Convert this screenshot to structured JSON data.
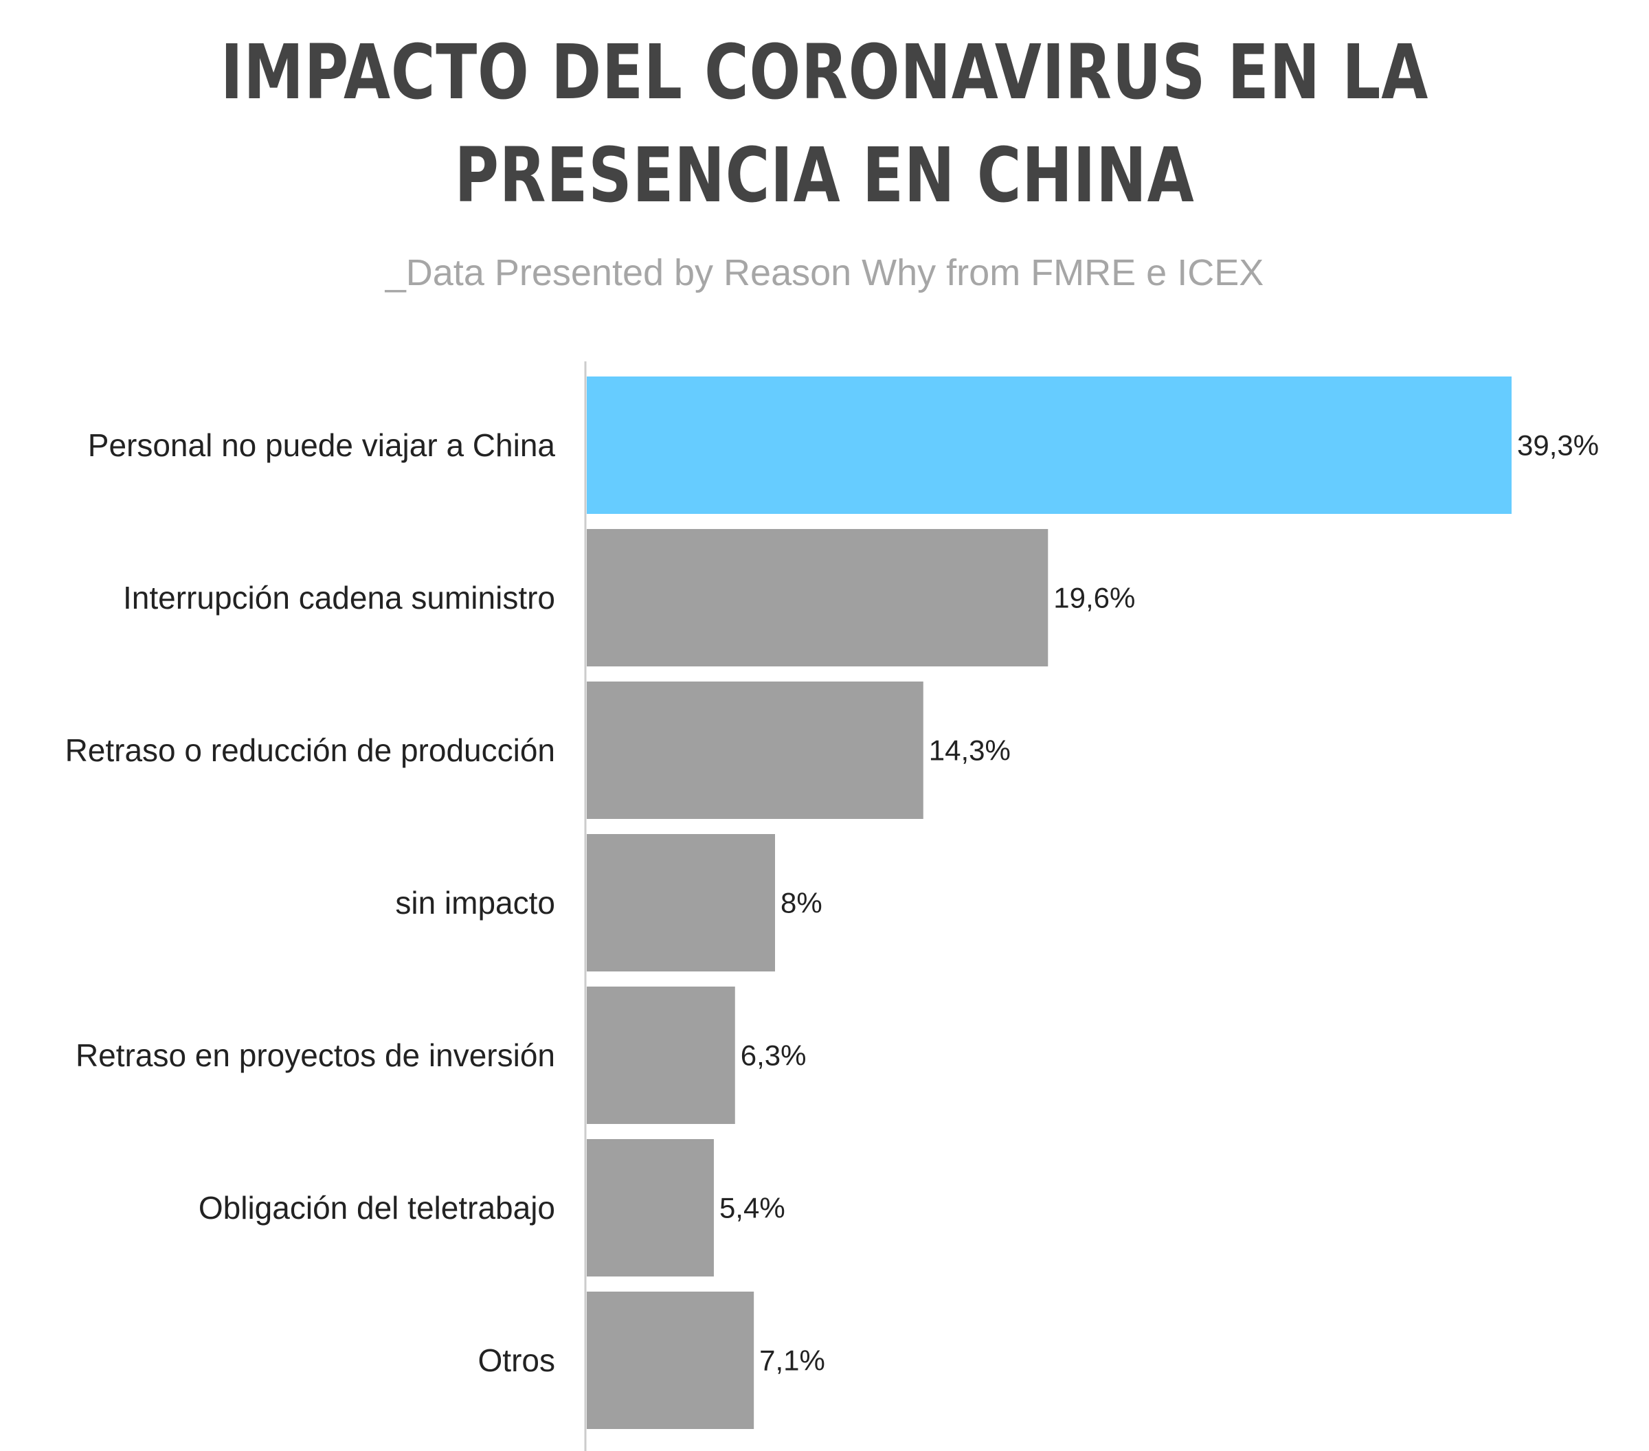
{
  "chart_data": {
    "type": "bar",
    "orientation": "horizontal",
    "title": "IMPACTO DEL CORONAVIRUS EN LA PRESENCIA EN CHINA",
    "title_lines": [
      "IMPACTO DEL CORONAVIRUS EN LA",
      "PRESENCIA EN CHINA"
    ],
    "subtitle": "_Data Presented by Reason Why from FMRE e ICEX",
    "categories": [
      "Personal no puede viajar a China",
      "Interrupción cadena suministro",
      "Retraso o reducción de producción",
      "sin impacto",
      "Retraso en proyectos de inversión",
      "Obligación del teletrabajo",
      "Otros"
    ],
    "values": [
      39.3,
      19.6,
      14.3,
      8,
      6.3,
      5.4,
      7.1
    ],
    "value_labels": [
      "39,3%",
      "19,6%",
      "14,3%",
      "8%",
      "6,3%",
      "5,4%",
      "7,1%"
    ],
    "unit": "%",
    "highlight_index": 0,
    "xlim": [
      0,
      39.3
    ],
    "grid": false,
    "legend": "none",
    "colors": {
      "highlight": "#66ccff",
      "bar": "#a0a0a0",
      "axis": "#cccccc",
      "title": "#444444",
      "subtitle": "#a6a6a6",
      "text": "#222222"
    }
  }
}
